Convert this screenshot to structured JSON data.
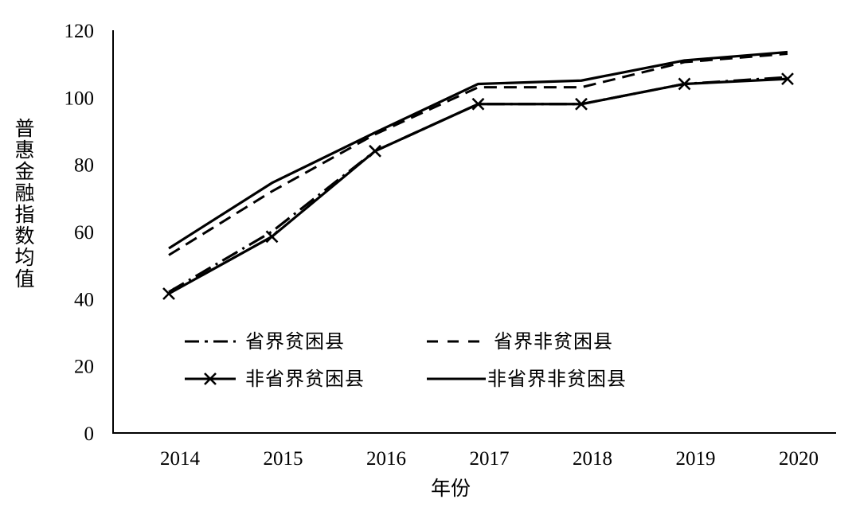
{
  "chart_data": {
    "type": "line",
    "title": "",
    "xlabel": "年份",
    "ylabel": "普惠金融指数均值",
    "categories": [
      "2014",
      "2015",
      "2016",
      "2017",
      "2018",
      "2019",
      "2020"
    ],
    "ylim": [
      0,
      120
    ],
    "yticks": [
      "0",
      "20",
      "40",
      "60",
      "80",
      "100",
      "120"
    ],
    "grid": false,
    "legend_position": "lower-right",
    "series": [
      {
        "name": "省界贫困县",
        "style": "dash-dot",
        "values": [
          42,
          60,
          84,
          98,
          98,
          104,
          106
        ]
      },
      {
        "name": "省界非贫困县",
        "style": "dashed",
        "values": [
          53,
          72,
          89,
          103,
          103,
          110.5,
          113
        ]
      },
      {
        "name": "非省界贫困县",
        "style": "solid-x",
        "values": [
          41.5,
          58.5,
          84,
          98,
          98,
          104,
          105.5
        ]
      },
      {
        "name": "非省界非贫困县",
        "style": "solid",
        "values": [
          55,
          74.5,
          89.5,
          104,
          105,
          111,
          113.5
        ]
      }
    ]
  }
}
